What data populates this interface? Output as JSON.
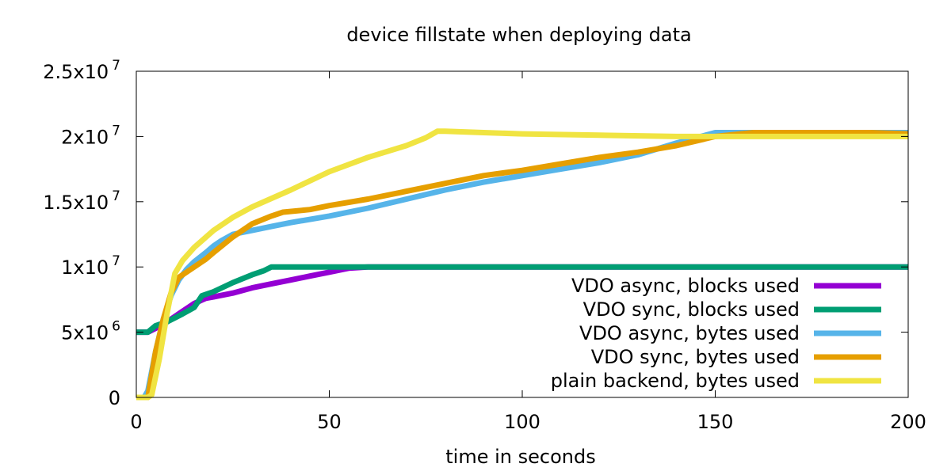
{
  "chart_data": {
    "type": "line",
    "title": "device fillstate when deploying data",
    "xlabel": "time in seconds",
    "ylabel": "",
    "xlim": [
      0,
      200
    ],
    "ylim": [
      0,
      25000000
    ],
    "grid": false,
    "legend_position": "bottom-right",
    "x_ticks": [
      {
        "value": 0,
        "label": "0"
      },
      {
        "value": 50,
        "label": "50"
      },
      {
        "value": 100,
        "label": "100"
      },
      {
        "value": 150,
        "label": "150"
      },
      {
        "value": 200,
        "label": "200"
      }
    ],
    "y_ticks": [
      {
        "value": 0,
        "base": "0",
        "exp": ""
      },
      {
        "value": 5000000,
        "base": "5x10",
        "exp": "6"
      },
      {
        "value": 10000000,
        "base": "1x10",
        "exp": "7"
      },
      {
        "value": 15000000,
        "base": "1.5x10",
        "exp": "7"
      },
      {
        "value": 20000000,
        "base": "2x10",
        "exp": "7"
      },
      {
        "value": 25000000,
        "base": "2.5x10",
        "exp": "7"
      }
    ],
    "series": [
      {
        "name": "VDO async, blocks used",
        "color": "#9400D3",
        "x": [
          0,
          3,
          5,
          8,
          10,
          12,
          15,
          18,
          20,
          25,
          30,
          35,
          40,
          45,
          50,
          55,
          60,
          80,
          100,
          150,
          200
        ],
        "y": [
          5000000,
          5000000,
          5300000,
          5800000,
          6200000,
          6600000,
          7200000,
          7600000,
          7700000,
          8000000,
          8400000,
          8700000,
          9000000,
          9300000,
          9600000,
          9900000,
          10000000,
          10000000,
          10000000,
          10000000,
          10000000
        ]
      },
      {
        "name": "VDO sync, blocks used",
        "color": "#009E73",
        "x": [
          0,
          3,
          5,
          8,
          10,
          12,
          15,
          17,
          20,
          25,
          30,
          33,
          35,
          50,
          100,
          150,
          200
        ],
        "y": [
          5000000,
          5000000,
          5500000,
          5800000,
          6100000,
          6400000,
          6900000,
          7800000,
          8100000,
          8800000,
          9400000,
          9700000,
          10000000,
          10000000,
          10000000,
          10000000,
          10000000
        ]
      },
      {
        "name": "VDO async, bytes used",
        "color": "#56B4E9",
        "x": [
          0,
          2,
          3,
          5,
          7,
          9,
          11,
          13,
          15,
          18,
          20,
          22,
          25,
          30,
          35,
          40,
          50,
          60,
          70,
          80,
          90,
          100,
          110,
          120,
          130,
          140,
          150,
          160,
          200
        ],
        "y": [
          0,
          0,
          500000,
          3500000,
          6000000,
          7800000,
          9000000,
          9800000,
          10400000,
          11100000,
          11600000,
          12000000,
          12500000,
          12800000,
          13100000,
          13400000,
          13900000,
          14500000,
          15200000,
          15900000,
          16500000,
          17000000,
          17500000,
          18000000,
          18600000,
          19500000,
          20300000,
          20300000,
          20300000
        ]
      },
      {
        "name": "VDO sync, bytes used",
        "color": "#E69F00",
        "x": [
          0,
          3,
          5,
          7,
          9,
          11,
          14,
          18,
          20,
          25,
          30,
          35,
          38,
          45,
          50,
          60,
          70,
          80,
          90,
          100,
          110,
          120,
          130,
          140,
          150,
          160,
          170,
          180,
          190,
          200
        ],
        "y": [
          0,
          0,
          3500000,
          6000000,
          8000000,
          9200000,
          9800000,
          10600000,
          11100000,
          12300000,
          13300000,
          13900000,
          14200000,
          14400000,
          14700000,
          15200000,
          15800000,
          16400000,
          17000000,
          17400000,
          17900000,
          18400000,
          18800000,
          19300000,
          20000000,
          20300000,
          20300000,
          20300000,
          20300000,
          20200000
        ]
      },
      {
        "name": "plain backend, bytes used",
        "color": "#F0E442",
        "x": [
          0,
          3,
          4,
          6,
          8,
          10,
          12,
          15,
          20,
          25,
          30,
          40,
          50,
          60,
          70,
          75,
          78,
          80,
          90,
          100,
          120,
          140,
          150,
          160,
          200
        ],
        "y": [
          0,
          0,
          200000,
          3000000,
          6500000,
          9500000,
          10500000,
          11500000,
          12800000,
          13800000,
          14600000,
          15900000,
          17300000,
          18400000,
          19300000,
          19900000,
          20400000,
          20400000,
          20300000,
          20200000,
          20100000,
          20000000,
          20000000,
          20000000,
          20000000
        ]
      }
    ]
  }
}
